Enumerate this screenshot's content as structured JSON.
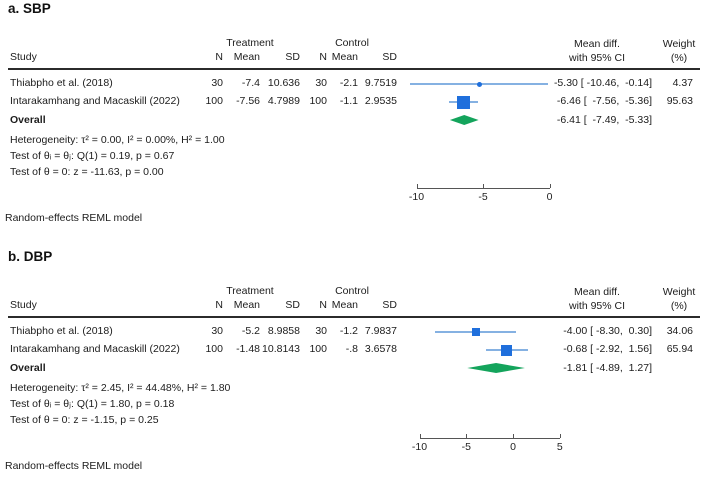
{
  "header": {
    "study": "Study",
    "treatment_group": "Treatment",
    "control_group": "Control",
    "n": "N",
    "mean": "Mean",
    "sd": "SD",
    "mean_diff_1": "Mean diff.",
    "mean_diff_2": "with 95% CI",
    "weight_1": "Weight",
    "weight_2": "(%)"
  },
  "colors": {
    "ci_line": "#85b1e2",
    "marker": "#1f6fdc",
    "diamond": "#14a45c",
    "axis": "#555555",
    "text": "#1c1c1c"
  },
  "chart_data": {
    "type": "forest",
    "model_note": "Random-effects REML model",
    "panels": [
      {
        "id": "a",
        "title": "a. SBP",
        "rows": [
          {
            "study": "Thiabpho et al. (2018)",
            "t_n": "30",
            "t_mean": "-7.4",
            "t_sd": "10.636",
            "c_n": "30",
            "c_mean": "-2.1",
            "c_sd": "9.7519",
            "est": -5.3,
            "lo": -10.46,
            "hi": -0.14,
            "ci_text": "-5.30 [ -10.46,  -0.14]",
            "weight": 4.37,
            "weight_text": "4.37"
          },
          {
            "study": "Intarakamhang and Macaskill (2022)",
            "t_n": "100",
            "t_mean": "-7.56",
            "t_sd": "4.7989",
            "c_n": "100",
            "c_mean": "-1.1",
            "c_sd": "2.9535",
            "est": -6.46,
            "lo": -7.56,
            "hi": -5.36,
            "ci_text": "-6.46 [  -7.56,  -5.36]",
            "weight": 95.63,
            "weight_text": "95.63"
          }
        ],
        "overall": {
          "label": "Overall",
          "est": -6.41,
          "lo": -7.49,
          "hi": -5.33,
          "ci_text": "-6.41 [  -7.49,  -5.33]"
        },
        "heterogeneity": "Heterogeneity: τ² = 0.00, I² = 0.00%, H² = 1.00",
        "test_homogeneity": "Test of θᵢ = θⱼ: Q(1) = 0.19, p = 0.67",
        "test_zero": "Test of θ = 0: z = -11.63, p = 0.00",
        "axis_ticks": [
          -10,
          -5,
          0
        ],
        "footnote": "Random-effects REML model"
      },
      {
        "id": "b",
        "title": "b. DBP",
        "rows": [
          {
            "study": "Thiabpho et al. (2018)",
            "t_n": "30",
            "t_mean": "-5.2",
            "t_sd": "8.9858",
            "c_n": "30",
            "c_mean": "-1.2",
            "c_sd": "7.9837",
            "est": -4.0,
            "lo": -8.3,
            "hi": 0.3,
            "ci_text": "-4.00 [ -8.30,  0.30]",
            "weight": 34.06,
            "weight_text": "34.06"
          },
          {
            "study": "Intarakamhang and Macaskill (2022)",
            "t_n": "100",
            "t_mean": "-1.48",
            "t_sd": "10.8143",
            "c_n": "100",
            "c_mean": "-.8",
            "c_sd": "3.6578",
            "est": -0.68,
            "lo": -2.92,
            "hi": 1.56,
            "ci_text": "-0.68 [ -2.92,  1.56]",
            "weight": 65.94,
            "weight_text": "65.94"
          }
        ],
        "overall": {
          "label": "Overall",
          "est": -1.81,
          "lo": -4.89,
          "hi": 1.27,
          "ci_text": "-1.81 [ -4.89,  1.27]"
        },
        "heterogeneity": "Heterogeneity: τ² = 2.45, I² = 44.48%, H² = 1.80",
        "test_homogeneity": "Test of θᵢ = θⱼ: Q(1) = 1.80, p = 0.18",
        "test_zero": "Test of θ = 0: z = -1.15, p = 0.25",
        "axis_ticks": [
          -10,
          -5,
          0,
          5
        ],
        "footnote": "Random-effects REML model"
      }
    ]
  }
}
